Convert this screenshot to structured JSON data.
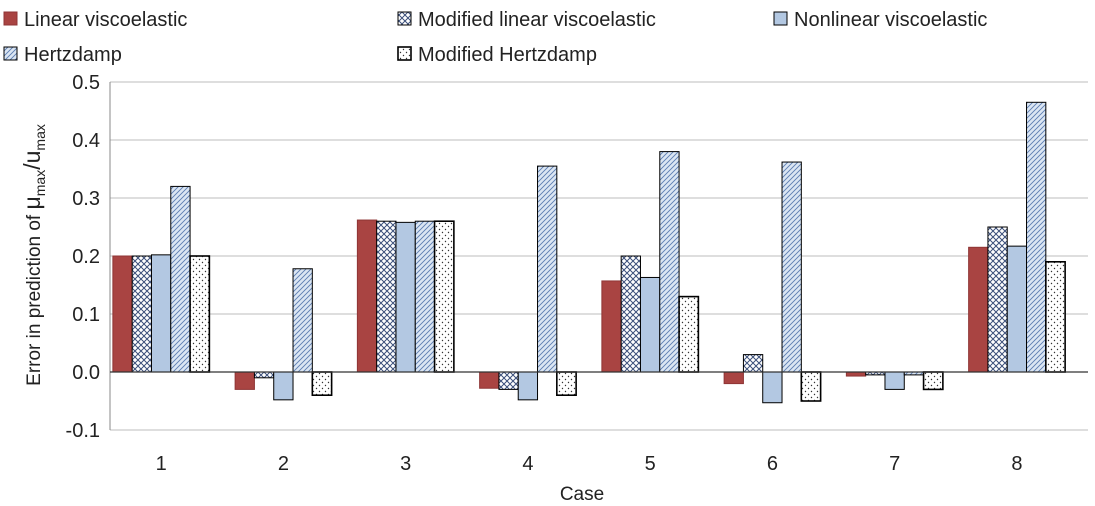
{
  "chart_data": {
    "type": "bar",
    "title": "",
    "xlabel": "Case",
    "ylabel": {
      "prefix": "Error in prediction of  ",
      "num": "μ",
      "num_sub": "max",
      "slash": "/u",
      "den_sub": "max"
    },
    "categories": [
      "1",
      "2",
      "3",
      "4",
      "5",
      "6",
      "7",
      "8"
    ],
    "ylim": [
      -0.1,
      0.5
    ],
    "yticks": [
      -0.1,
      0.0,
      0.1,
      0.2,
      0.3,
      0.4,
      0.5
    ],
    "ytick_labels": [
      "-0.1",
      "0.0",
      "0.1",
      "0.2",
      "0.3",
      "0.4",
      "0.5"
    ],
    "grid": "horizontal",
    "legend": "top",
    "series": [
      {
        "name": "Linear viscoelastic",
        "pattern": "solid",
        "color": "#a94442",
        "values": [
          0.2,
          -0.03,
          0.262,
          -0.028,
          0.157,
          -0.02,
          -0.007,
          0.215
        ]
      },
      {
        "name": "Modified linear viscoelastic",
        "pattern": "crosshatch",
        "color": "#3b4f7a",
        "values": [
          0.2,
          -0.01,
          0.26,
          -0.03,
          0.2,
          0.03,
          -0.005,
          0.25
        ]
      },
      {
        "name": "Nonlinear viscoelastic",
        "pattern": "solid",
        "color": "#b3c8e2",
        "values": [
          0.202,
          -0.048,
          0.258,
          -0.048,
          0.163,
          -0.053,
          -0.03,
          0.217
        ]
      },
      {
        "name": "Hertzdamp",
        "pattern": "diagonal",
        "color": "#5b7db1",
        "values": [
          0.32,
          0.178,
          0.26,
          0.355,
          0.38,
          0.362,
          -0.005,
          0.465
        ]
      },
      {
        "name": "Modified Hertzdamp",
        "pattern": "dots",
        "color": "#333333",
        "values": [
          0.2,
          -0.04,
          0.26,
          -0.04,
          0.13,
          -0.05,
          -0.03,
          0.19
        ]
      }
    ]
  }
}
